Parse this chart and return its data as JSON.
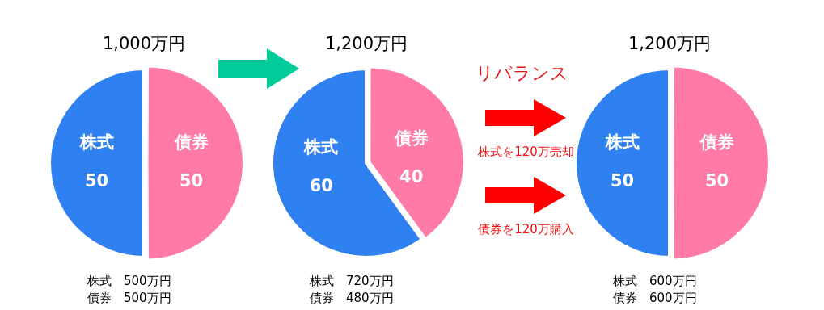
{
  "chart_data": [
    {
      "type": "pie",
      "title": "1,000万円",
      "categories": [
        "株式",
        "債券"
      ],
      "values": [
        50,
        50
      ],
      "colors": [
        "#2f80f0",
        "#ff7ba6"
      ],
      "data_labels": true,
      "annotations": [
        "株式　500万円",
        "債券　500万円"
      ]
    },
    {
      "type": "pie",
      "title": "1,200万円",
      "categories": [
        "株式",
        "債券"
      ],
      "values": [
        60,
        40
      ],
      "colors": [
        "#2f80f0",
        "#ff7ba6"
      ],
      "data_labels": true,
      "annotations": [
        "株式　720万円",
        "債券　480万円"
      ]
    },
    {
      "type": "other",
      "title": "リバランス",
      "annotations": [
        "株式を120万売却",
        "債券を120万購入"
      ]
    },
    {
      "type": "pie",
      "title": "1,200万円",
      "categories": [
        "株式",
        "債券"
      ],
      "values": [
        50,
        50
      ],
      "colors": [
        "#2f80f0",
        "#ff7ba6"
      ],
      "data_labels": true,
      "annotations": [
        "株式　600万円",
        "債券　600万円"
      ]
    }
  ]
}
